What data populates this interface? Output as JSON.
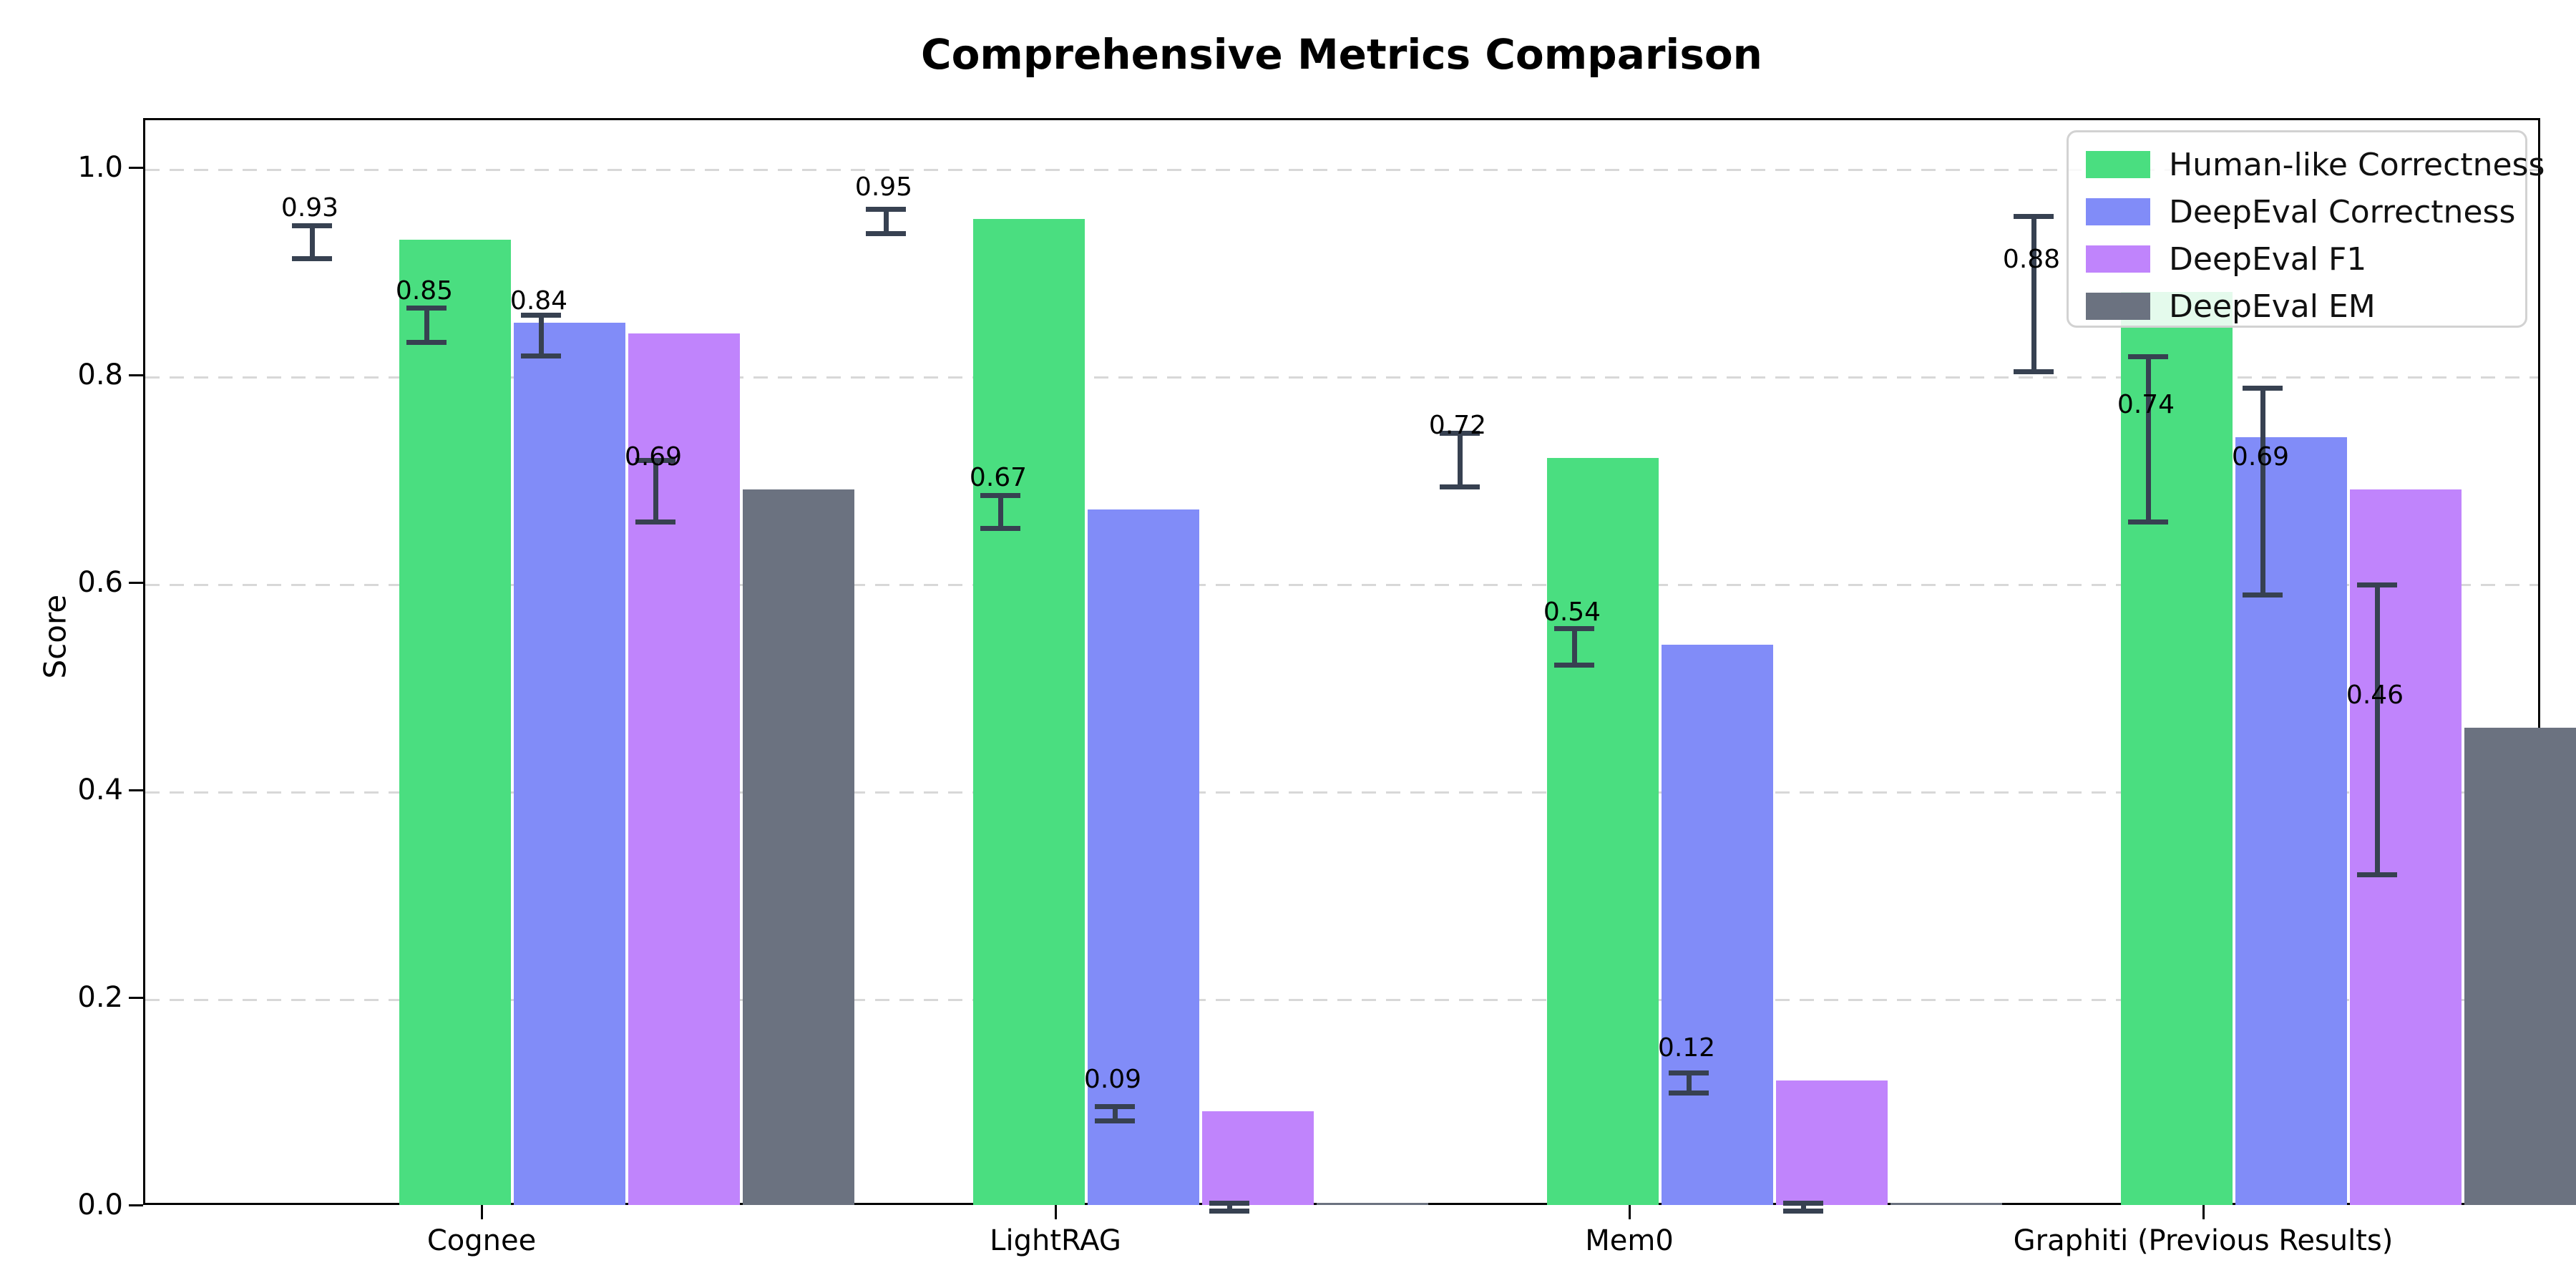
{
  "chart_data": {
    "type": "bar",
    "title": "Comprehensive Metrics Comparison",
    "ylabel": "Score",
    "xlabel": "",
    "categories": [
      "Cognee",
      "LightRAG",
      "Mem0",
      "Graphiti (Previous Results)"
    ],
    "ytick_labels": [
      "0.0",
      "0.2",
      "0.4",
      "0.6",
      "0.8",
      "1.0"
    ],
    "ytick_values": [
      0.0,
      0.2,
      0.4,
      0.6,
      0.8,
      1.0
    ],
    "ylim": [
      0,
      1.048
    ],
    "grid": "horizontal-dashed",
    "legend_position": "upper right",
    "error_bar_color": "#374151",
    "series": [
      {
        "name": "Human-like Correctness",
        "color": "#4ade80",
        "values": [
          0.93,
          0.95,
          0.72,
          0.88
        ],
        "errors": [
          0.016,
          0.012,
          0.026,
          0.075
        ],
        "labels": [
          "0.93",
          "0.95",
          "0.72",
          "0.88"
        ]
      },
      {
        "name": "DeepEval Correctness",
        "color": "#818cf8",
        "values": [
          0.85,
          0.67,
          0.54,
          0.74
        ],
        "errors": [
          0.017,
          0.016,
          0.018,
          0.08
        ],
        "labels": [
          "0.85",
          "0.67",
          "0.54",
          "0.74"
        ]
      },
      {
        "name": "DeepEval F1",
        "color": "#c084fc",
        "values": [
          0.84,
          0.09,
          0.12,
          0.69
        ],
        "errors": [
          0.02,
          0.007,
          0.01,
          0.1
        ],
        "labels": [
          "0.84",
          "0.09",
          "0.12",
          "0.69"
        ]
      },
      {
        "name": "DeepEval EM",
        "color": "#6b7280",
        "values": [
          0.69,
          0.0,
          0.0,
          0.46
        ],
        "errors": [
          0.03,
          0.004,
          0.004,
          0.14
        ],
        "labels": [
          "0.69",
          "",
          "",
          "0.46"
        ]
      }
    ]
  }
}
